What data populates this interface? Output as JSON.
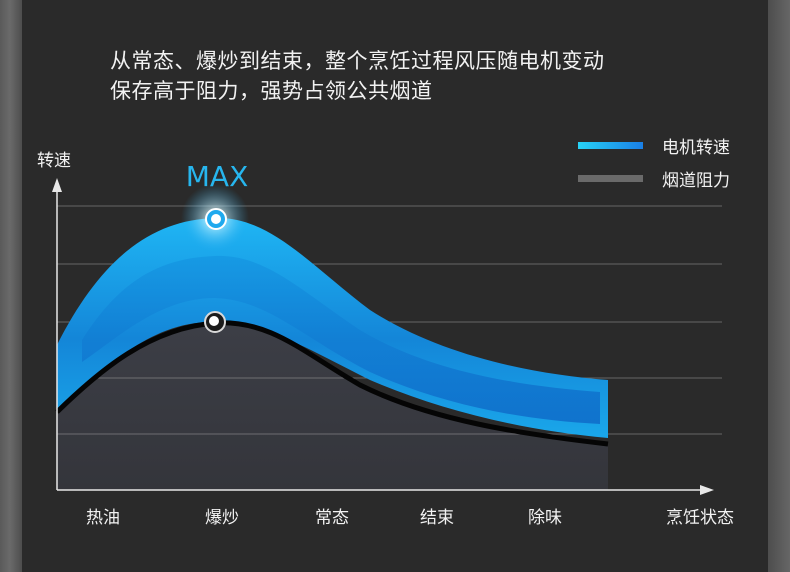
{
  "headline": {
    "line1": "从常态、爆炒到结束，整个烹饪过程风压随电机变动",
    "line2": "保存高于阻力，强势占领公共烟道"
  },
  "chart_data": {
    "type": "area",
    "ylabel": "转速",
    "xlabel": "烹饪状态",
    "categories": [
      "热油",
      "爆炒",
      "常态",
      "结束",
      "除味"
    ],
    "peak_label": "MAX",
    "legend_position": "top-right",
    "series": [
      {
        "name": "电机转速",
        "color": "#1fa9ee"
      },
      {
        "name": "烟道阻力",
        "color": "#6a6a6a"
      }
    ],
    "grid": true
  }
}
